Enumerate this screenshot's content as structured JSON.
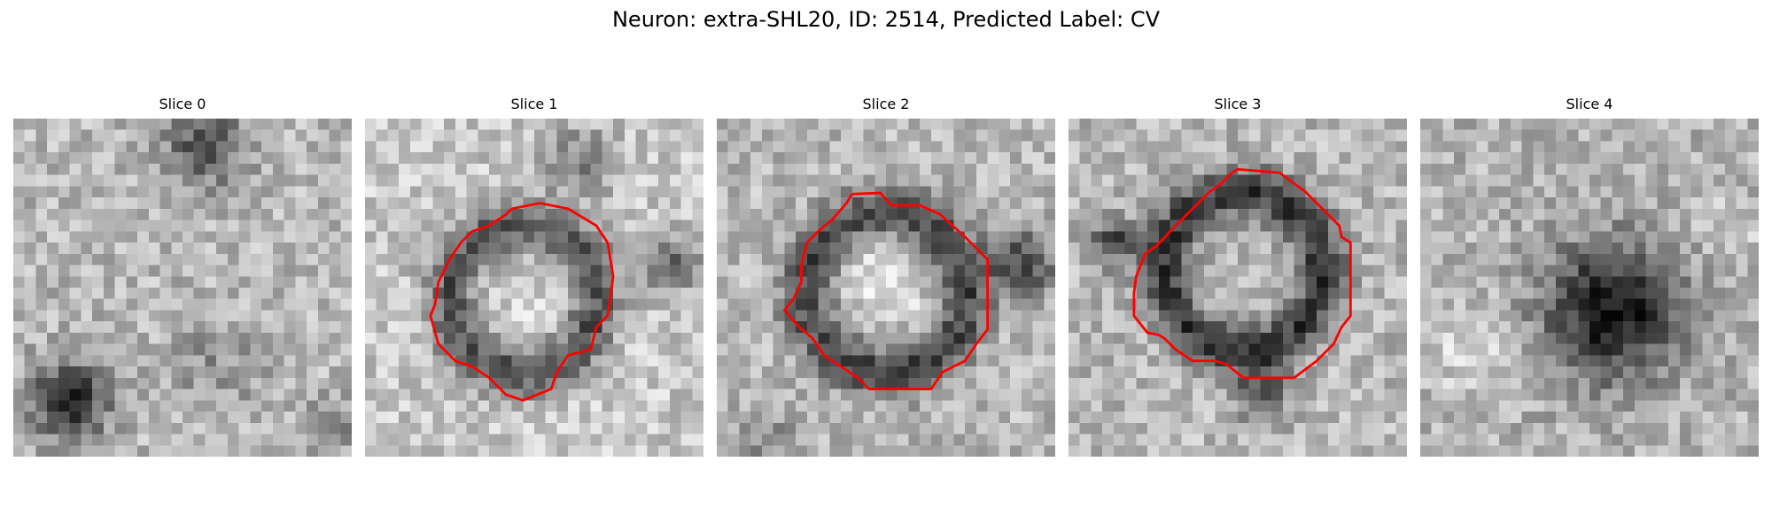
{
  "figure": {
    "title": "Neuron: extra-SHL20, ID: 2514, Predicted Label: CV"
  },
  "panels": [
    {
      "title": "Slice 0",
      "has_contour": false
    },
    {
      "title": "Slice 1",
      "has_contour": true
    },
    {
      "title": "Slice 2",
      "has_contour": true
    },
    {
      "title": "Slice 3",
      "has_contour": true
    },
    {
      "title": "Slice 4",
      "has_contour": false
    }
  ],
  "colors": {
    "contour": "#ff0000",
    "title_text": "#000000"
  },
  "grid_size": 30
}
